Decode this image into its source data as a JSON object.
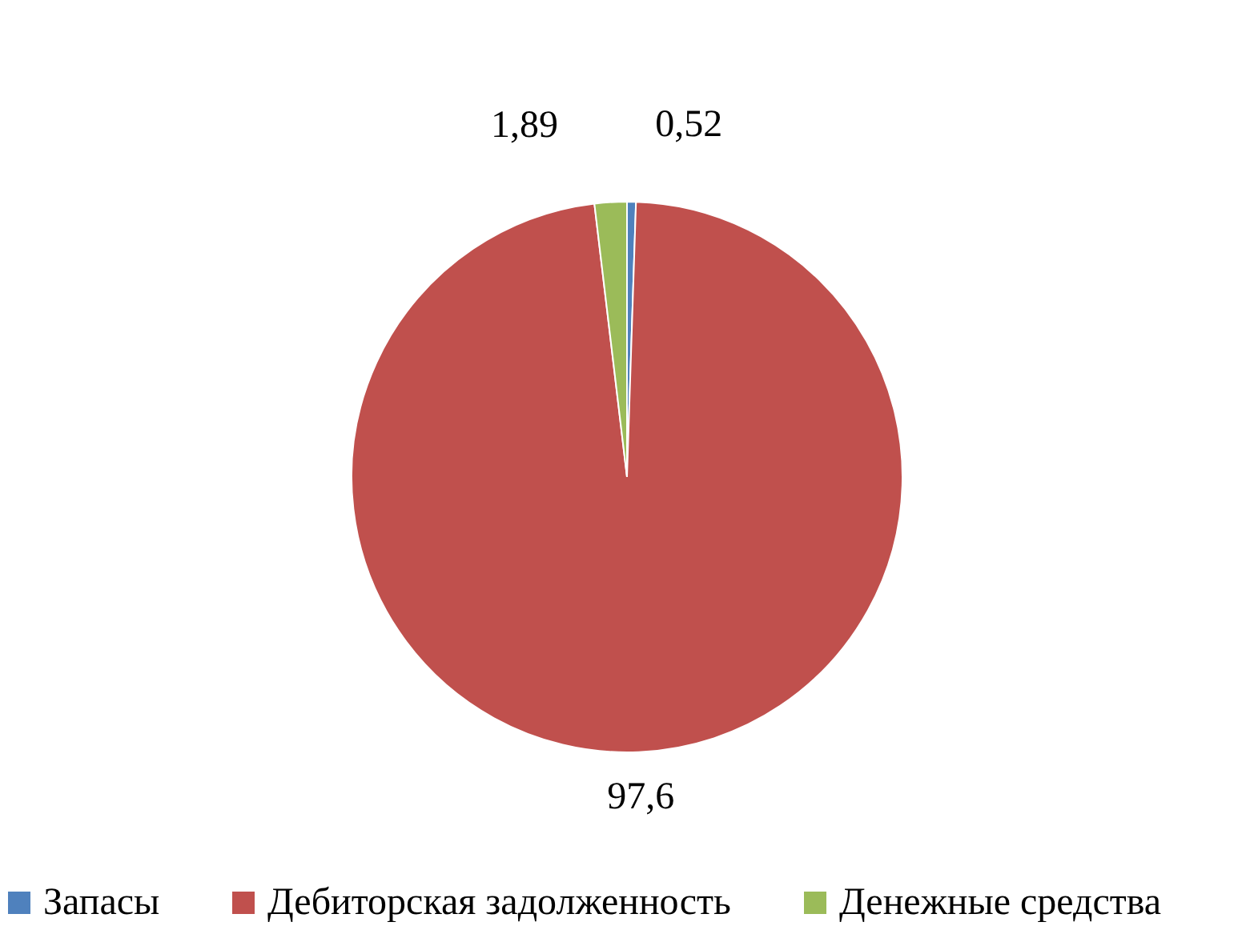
{
  "chart_data": {
    "type": "pie",
    "categories": [
      "Запасы",
      "Дебиторская задолженность",
      "Денежные средства"
    ],
    "values": [
      0.52,
      97.6,
      1.89
    ],
    "colors": [
      "#4f81bd",
      "#c0504d",
      "#9bbb59"
    ],
    "value_labels": [
      "0,52",
      "97,6",
      "1,89"
    ],
    "legend": "bottom"
  }
}
